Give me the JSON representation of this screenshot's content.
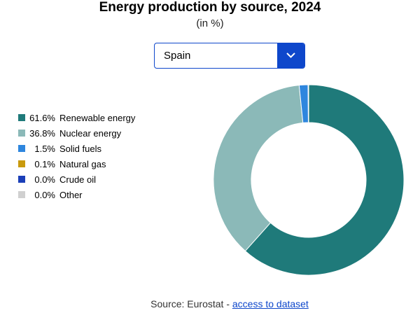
{
  "chart_data": {
    "type": "pie",
    "title": "Energy production by source, 2024",
    "subtitle": "(in %)",
    "categories": [
      "Renewable energy",
      "Nuclear energy",
      "Solid fuels",
      "Natural gas",
      "Crude oil",
      "Other"
    ],
    "values": [
      61.6,
      36.8,
      1.5,
      0.1,
      0.0,
      0.0
    ],
    "value_labels": [
      "61.6%",
      "36.8%",
      "1.5%",
      "0.1%",
      "0.0%",
      "0.0%"
    ],
    "colors": [
      "#1f7a7a",
      "#8bb9b8",
      "#2e86de",
      "#c99a0e",
      "#1b3fb8",
      "#d0d0d0"
    ],
    "unit": "%",
    "donut": true,
    "legend_position": "left"
  },
  "selector": {
    "selected": "Spain"
  },
  "source": {
    "prefix": "Source: Eurostat - ",
    "link_label": "access to dataset"
  },
  "icons": {
    "dropdown": "chevron-down-icon"
  }
}
